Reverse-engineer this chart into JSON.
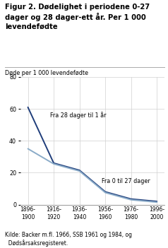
{
  "title_line1": "Figur 2. Dødelighet i periodene 0-27",
  "title_line2": "dager og 28 dager-ett år. Per 1 000",
  "title_line3": "levendefødte",
  "ylabel": "Døde per 1 000 levendefødte",
  "source_line1": "Kilde: Backer m.fl. 1966, SSB 1961 og 1984, og",
  "source_line2": "  Dødsårsaksregisteret.",
  "x_labels": [
    "1896-\n1900",
    "1916-\n1920",
    "1936-\n1940",
    "1956-\n1960",
    "1976-\n1980",
    "1996-\n2000"
  ],
  "x_values": [
    0,
    1,
    2,
    3,
    4,
    5
  ],
  "series_28dag_1ar": [
    61,
    26,
    21.5,
    8,
    3.5,
    2.0
  ],
  "series_0_27dag": [
    35,
    25.5,
    21,
    7.5,
    3.0,
    1.5
  ],
  "color_dark": "#1f3d7a",
  "color_light": "#8aabc8",
  "label_28dag": "Fra 28 dager til 1 år",
  "label_0_27": "Fra 0 til 27 dager",
  "ylim": [
    0,
    80
  ],
  "yticks": [
    0,
    20,
    40,
    60,
    80
  ]
}
